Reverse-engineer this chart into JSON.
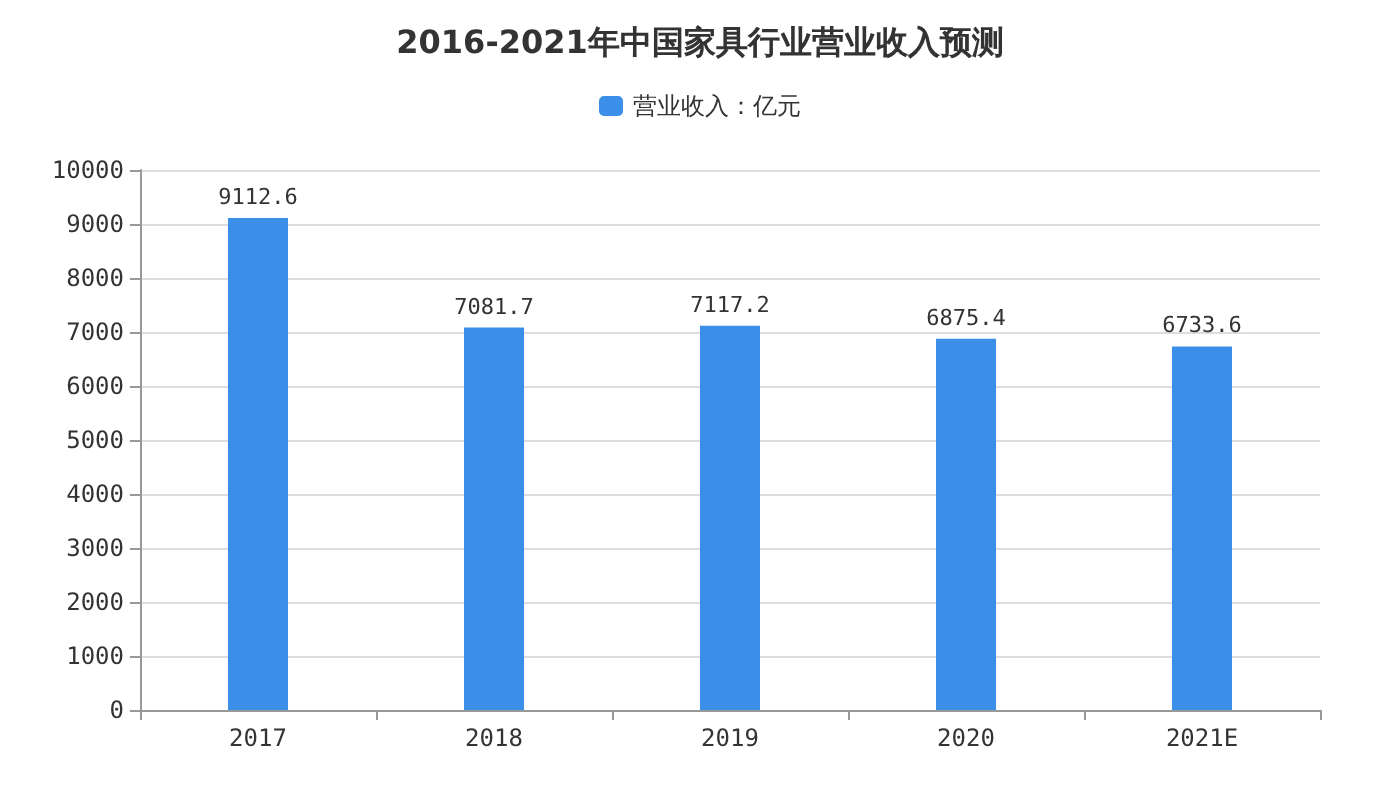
{
  "chart_data": {
    "type": "bar",
    "title": "2016-2021年中国家具行业营业收入预测",
    "categories": [
      "2017",
      "2018",
      "2019",
      "2020",
      "2021E"
    ],
    "series": [
      {
        "name": "营业收入：亿元",
        "color": "#3b8fe8",
        "values": [
          9112.6,
          7081.7,
          7117.2,
          6875.4,
          6733.6
        ]
      }
    ],
    "ylim": [
      0,
      10000
    ],
    "yticks": [
      0,
      1000,
      2000,
      3000,
      4000,
      5000,
      6000,
      7000,
      8000,
      9000,
      10000
    ],
    "grid": "y",
    "legend": "top",
    "data_labels": true
  }
}
